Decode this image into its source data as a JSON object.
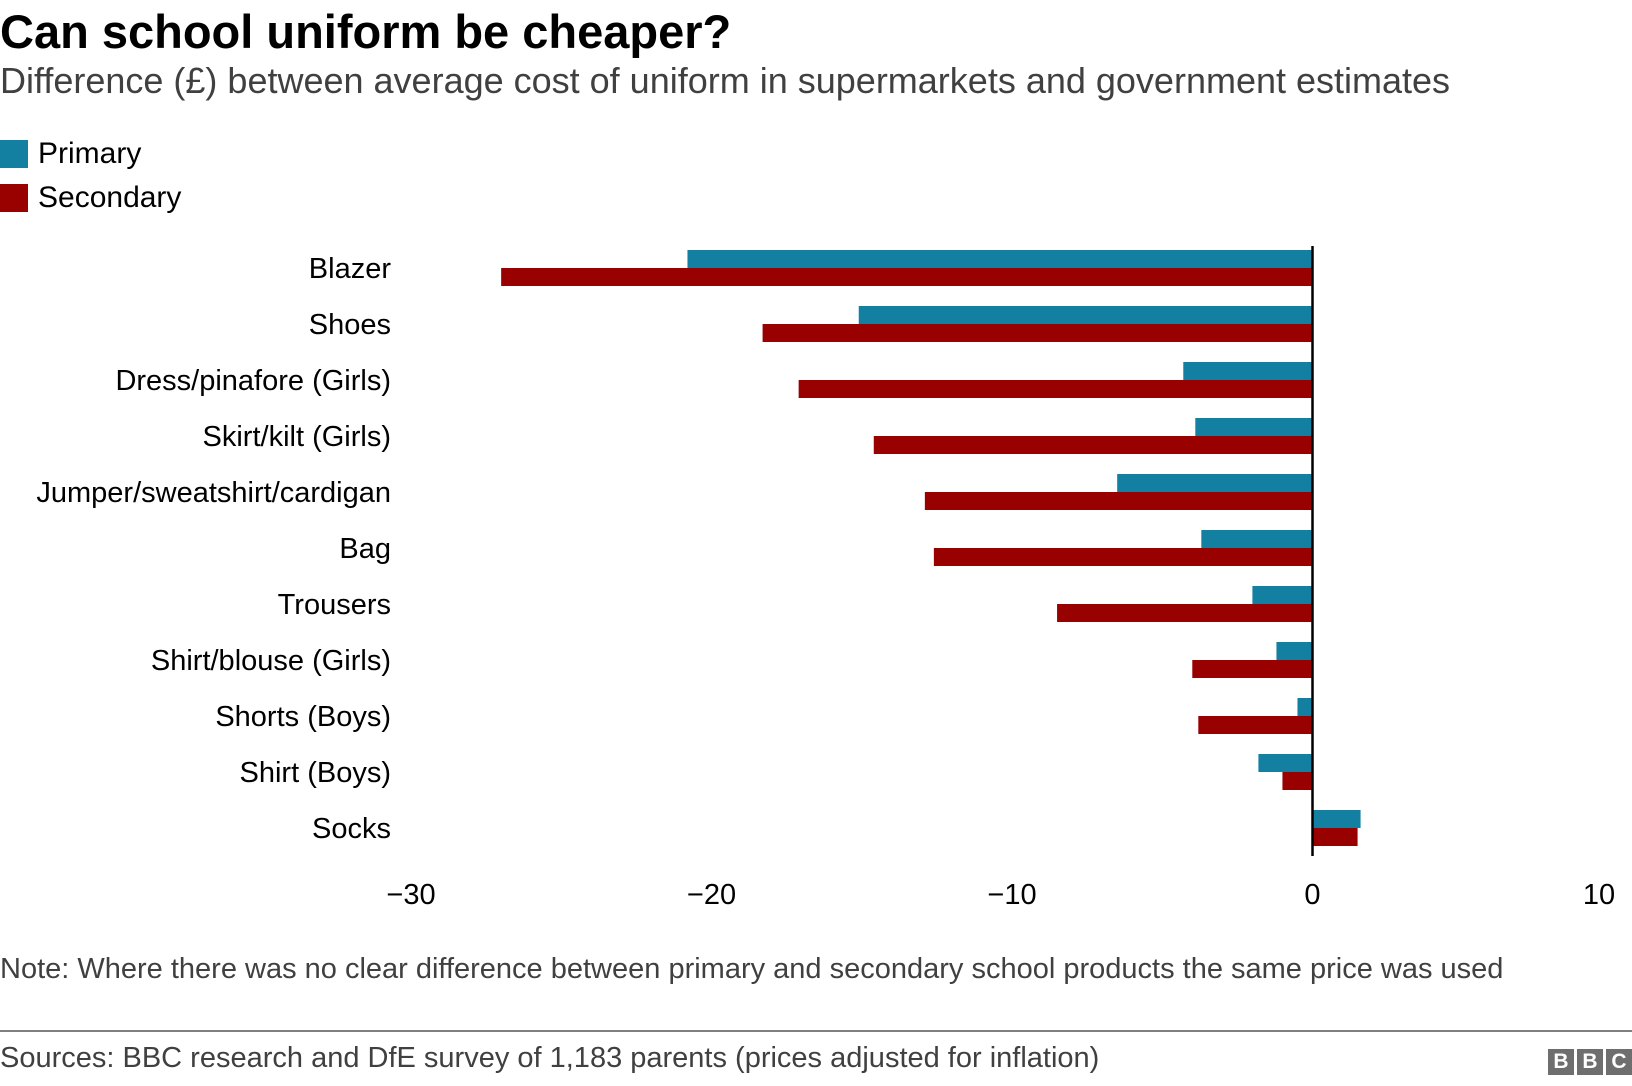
{
  "chart_data": {
    "type": "bar",
    "orientation": "horizontal",
    "title": "Can school uniform be cheaper?",
    "subtitle": "Difference (£) between average cost of uniform in supermarkets and government estimates",
    "categories": [
      "Blazer",
      "Shoes",
      "Dress/pinafore (Girls)",
      "Skirt/kilt (Girls)",
      "Jumper/sweatshirt/cardigan",
      "Bag",
      "Trousers",
      "Shirt/blouse (Girls)",
      "Shorts (Boys)",
      "Shirt (Boys)",
      "Socks"
    ],
    "series": [
      {
        "name": "Primary",
        "color": "#1380A1",
        "values": [
          -20.8,
          -15.1,
          -4.3,
          -3.9,
          -6.5,
          -3.7,
          -2.0,
          -1.2,
          -0.5,
          -1.8,
          1.6
        ]
      },
      {
        "name": "Secondary",
        "color": "#990000",
        "values": [
          -27.0,
          -18.3,
          -17.1,
          -14.6,
          -12.9,
          -12.6,
          -8.5,
          -4.0,
          -3.8,
          -1.0,
          1.5
        ]
      }
    ],
    "xlim": [
      -30,
      10
    ],
    "xticks": [
      -30,
      -20,
      -10,
      0,
      10
    ],
    "xtick_labels": [
      "−30",
      "−20",
      "−10",
      "0",
      "10"
    ],
    "xlabel": "",
    "ylabel": "",
    "grid": false,
    "legend_position": "top-left"
  },
  "note": "Note: Where there was no clear difference between primary and secondary school products the same price was used",
  "source": "Sources: BBC research and DfE survey of 1,183 parents (prices adjusted for inflation)",
  "logo": [
    "B",
    "B",
    "C"
  ]
}
